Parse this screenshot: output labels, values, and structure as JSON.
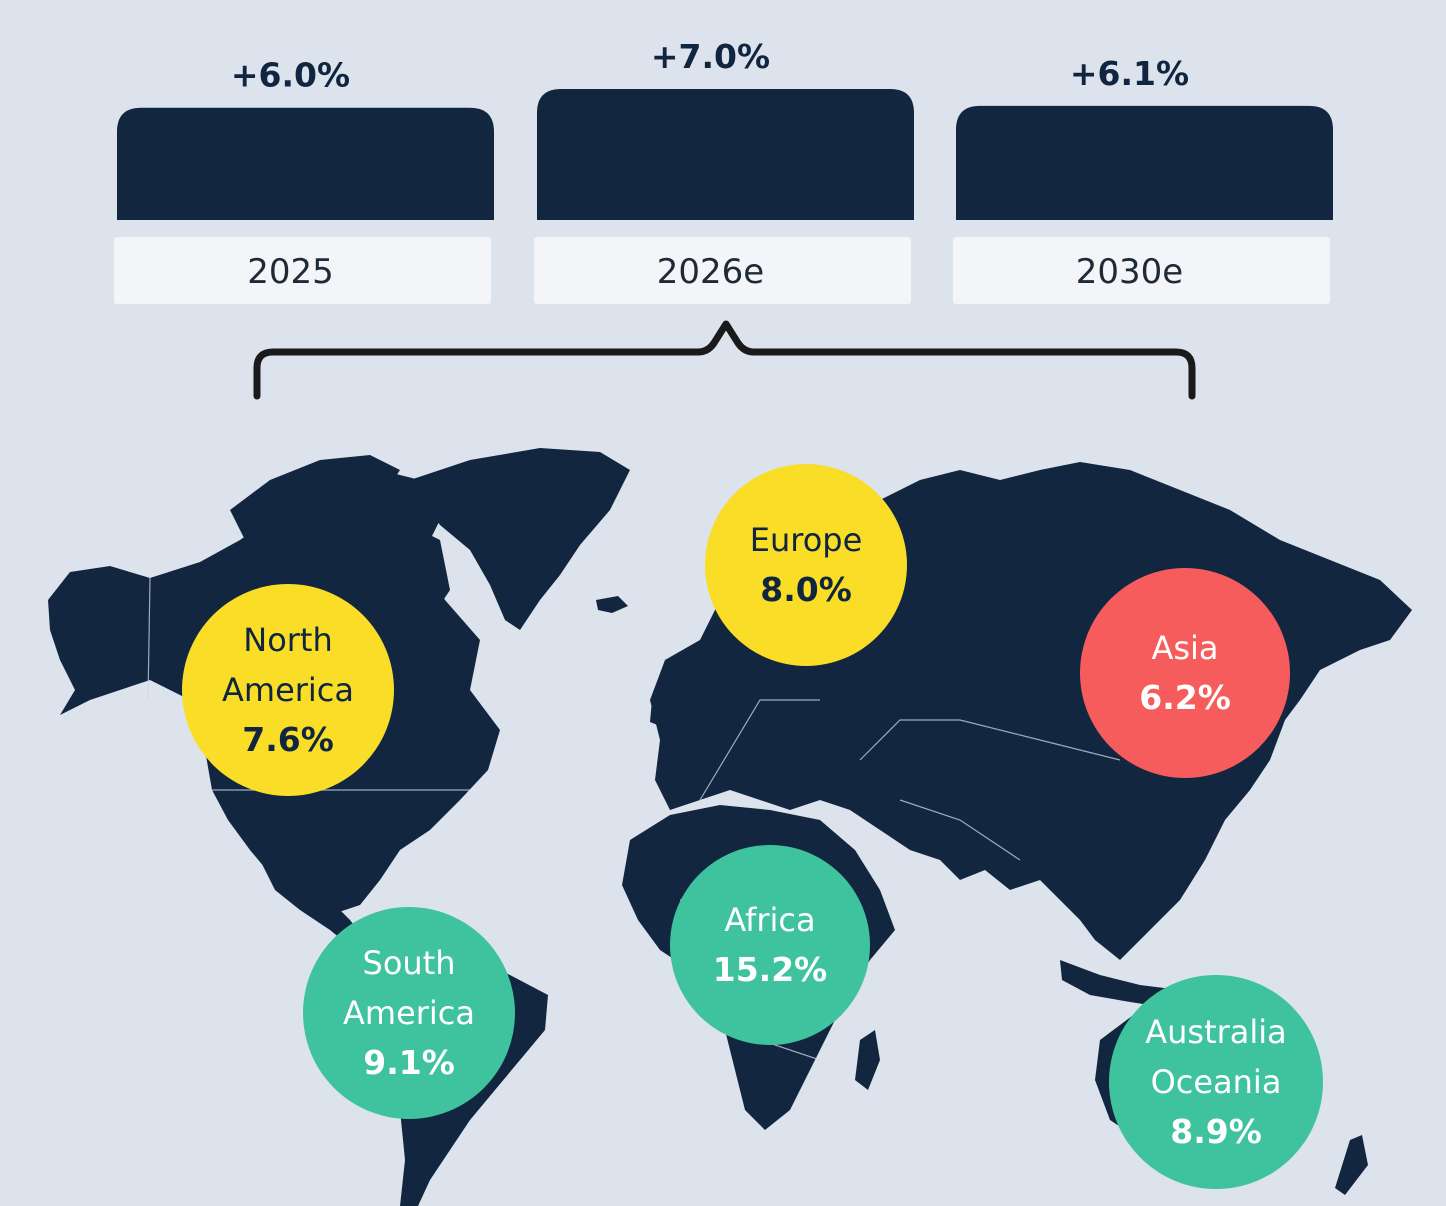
{
  "chart_data": [
    {
      "type": "bar",
      "categories": [
        "2025",
        "2026e",
        "2030e"
      ],
      "values": [
        6.0,
        7.0,
        6.1
      ],
      "value_labels": [
        "+6.0%",
        "+7.0%",
        "+6.1%"
      ],
      "ylim": [
        0,
        7.0
      ],
      "colors": {
        "bar": "#12263f",
        "label_box": "#f3f5f9"
      }
    },
    {
      "type": "bubble",
      "regions": [
        {
          "name": "North America",
          "label": "North\nAmerica",
          "value": 7.6,
          "value_label": "7.6%",
          "color": "#f9dd27",
          "text_color": "#0f2540"
        },
        {
          "name": "Europe",
          "label": "Europe",
          "value": 8.0,
          "value_label": "8.0%",
          "color": "#f9dd27",
          "text_color": "#0f2540"
        },
        {
          "name": "Asia",
          "label": "Asia",
          "value": 6.2,
          "value_label": "6.2%",
          "color": "#f65c5c",
          "text_color": "#ffffff"
        },
        {
          "name": "South America",
          "label": "South\nAmerica",
          "value": 9.1,
          "value_label": "9.1%",
          "color": "#3ec39e",
          "text_color": "#ffffff"
        },
        {
          "name": "Africa",
          "label": "Africa",
          "value": 15.2,
          "value_label": "15.2%",
          "color": "#3ec39e",
          "text_color": "#ffffff"
        },
        {
          "name": "Australia Oceania",
          "label": "Australia\nOceania",
          "value": 8.9,
          "value_label": "8.9%",
          "color": "#3ec39e",
          "text_color": "#ffffff"
        }
      ]
    }
  ],
  "colors": {
    "background": "#dce3ed",
    "map_land": "#12263f",
    "brace": "#1a1a1a"
  }
}
